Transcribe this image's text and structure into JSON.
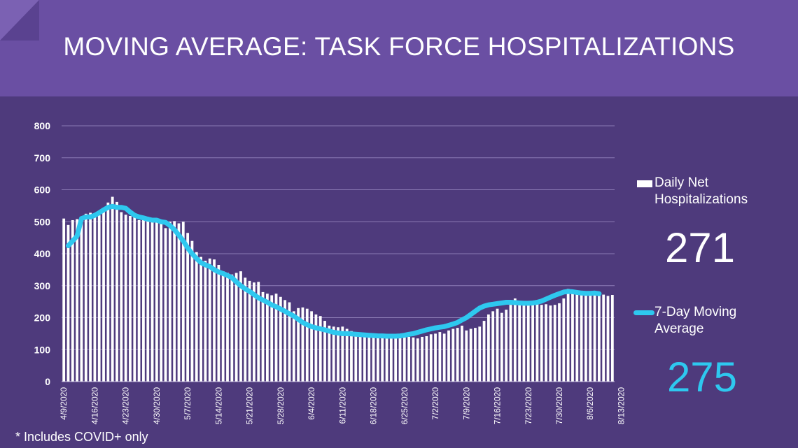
{
  "title": "MOVING AVERAGE: TASK FORCE HOSPITALIZATIONS",
  "footnote": "* Includes COVID+ only",
  "colors": {
    "header": "#6a4fa3",
    "background": "#4e3a7c",
    "bars": "#ffffff",
    "line": "#2ec8ef",
    "grid": "#8b7bb5"
  },
  "legend": {
    "bars_label": "Daily Net Hospitalizations",
    "bars_value": "271",
    "line_label": "7-Day Moving Average",
    "line_value": "275"
  },
  "chart_data": {
    "type": "bar",
    "ylim": [
      0,
      800
    ],
    "yticks": [
      0,
      100,
      200,
      300,
      400,
      500,
      600,
      700,
      800
    ],
    "grid": true,
    "legend_position": "right",
    "x_tick_labels": [
      "4/9/2020",
      "4/16/2020",
      "4/23/2020",
      "4/30/2020",
      "5/7/2020",
      "5/14/2020",
      "5/21/2020",
      "5/28/2020",
      "6/4/2020",
      "6/11/2020",
      "6/18/2020",
      "6/25/2020",
      "7/2/2020",
      "7/9/2020",
      "7/16/2020",
      "7/23/2020",
      "7/30/2020",
      "8/6/2020",
      "8/13/2020"
    ],
    "start_date": "4/9/2020",
    "series": [
      {
        "name": "Daily Net Hospitalizations",
        "type": "bar",
        "values": [
          510,
          490,
          505,
          508,
          510,
          525,
          528,
          525,
          520,
          530,
          560,
          578,
          562,
          530,
          522,
          518,
          515,
          505,
          508,
          515,
          512,
          510,
          505,
          480,
          500,
          502,
          495,
          500,
          465,
          440,
          405,
          390,
          378,
          385,
          382,
          365,
          345,
          340,
          335,
          340,
          345,
          325,
          315,
          310,
          312,
          280,
          275,
          270,
          275,
          265,
          255,
          248,
          220,
          230,
          232,
          228,
          220,
          210,
          205,
          190,
          175,
          172,
          170,
          172,
          165,
          158,
          150,
          148,
          150,
          145,
          145,
          140,
          140,
          140,
          138,
          140,
          138,
          138,
          140,
          138,
          135,
          140,
          142,
          148,
          150,
          155,
          150,
          160,
          165,
          168,
          175,
          160,
          165,
          168,
          172,
          190,
          210,
          220,
          228,
          215,
          225,
          240,
          260,
          250,
          248,
          245,
          250,
          245,
          240,
          242,
          238,
          240,
          245,
          260,
          290,
          285,
          285,
          275,
          270,
          272,
          278,
          276,
          272,
          268,
          271
        ]
      },
      {
        "name": "7-Day Moving Average",
        "type": "line",
        "start_index": 1,
        "values": [
          425,
          440,
          455,
          510,
          515,
          515,
          520,
          528,
          537,
          545,
          548,
          545,
          545,
          542,
          530,
          520,
          515,
          512,
          508,
          505,
          505,
          500,
          498,
          488,
          475,
          458,
          440,
          418,
          400,
          385,
          372,
          365,
          360,
          350,
          343,
          338,
          332,
          325,
          312,
          300,
          290,
          282,
          272,
          262,
          255,
          248,
          240,
          234,
          227,
          220,
          212,
          205,
          195,
          185,
          178,
          172,
          168,
          165,
          162,
          158,
          154,
          152,
          150,
          150,
          149,
          148,
          147,
          146,
          145,
          144,
          143,
          143,
          142,
          142,
          142,
          143,
          145,
          148,
          150,
          154,
          158,
          162,
          165,
          168,
          170,
          172,
          176,
          180,
          185,
          193,
          200,
          210,
          220,
          230,
          236,
          240,
          242,
          244,
          246,
          248,
          248,
          247,
          246,
          245,
          245,
          246,
          248,
          252,
          258,
          264,
          270,
          275,
          280,
          282,
          281,
          279,
          277,
          276,
          276,
          277,
          275
        ]
      }
    ]
  }
}
